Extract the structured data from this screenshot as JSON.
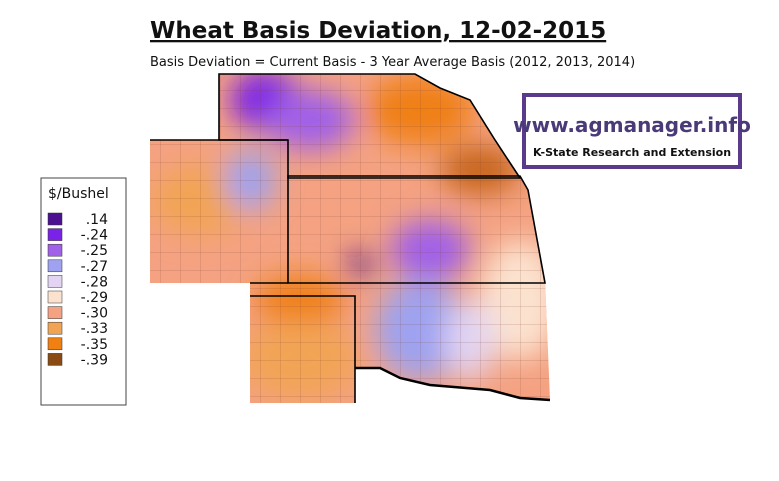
{
  "header": {
    "title": "Wheat Basis Deviation, 12-02-2015",
    "subtitle": "Basis Deviation = Current Basis - 3 Year Average Basis (2012, 2013, 2014)"
  },
  "legend": {
    "title": "$/Bushel",
    "items": [
      {
        "label": ".14",
        "color": "#4b1190"
      },
      {
        "label": "-.24",
        "color": "#7b22e8"
      },
      {
        "label": "-.25",
        "color": "#a060e8"
      },
      {
        "label": "-.27",
        "color": "#9ea2f0"
      },
      {
        "label": "-.28",
        "color": "#e2d4f2"
      },
      {
        "label": "-.29",
        "color": "#fbe2cf"
      },
      {
        "label": "-.30",
        "color": "#f4a282"
      },
      {
        "label": "-.33",
        "color": "#f2a455"
      },
      {
        "label": "-.35",
        "color": "#f08012"
      },
      {
        "label": "-.39",
        "color": "#8b4a12"
      }
    ]
  },
  "logo": {
    "url": "www.agmanager.info",
    "org": "K-State Research and Extension"
  }
}
